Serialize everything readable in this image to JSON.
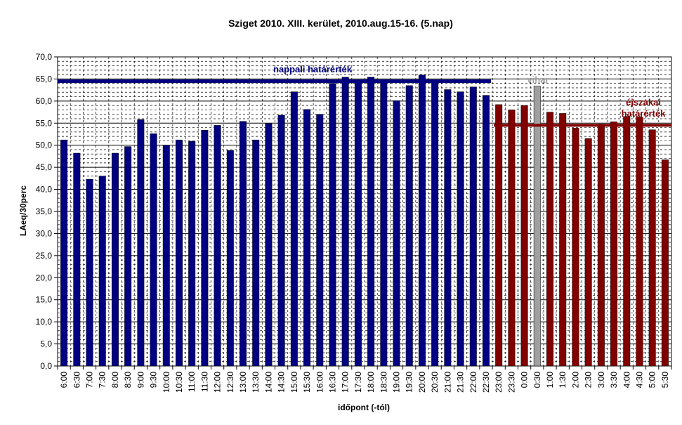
{
  "chart_data": {
    "type": "bar",
    "title": "Sziget 2010.  XIII. kerület, 2010.aug.15-16. (5.nap)",
    "xlabel": "időpont (-tól)",
    "ylabel": "LAeq/30perc",
    "ylim": [
      0,
      70
    ],
    "ytick_step": 5,
    "ytick_labels": [
      "0,0",
      "5,0",
      "10,0",
      "15,0",
      "20,0",
      "25,0",
      "30,0",
      "35,0",
      "40,0",
      "45,0",
      "50,0",
      "55,0",
      "60,0",
      "65,0",
      "70,0"
    ],
    "grid": true,
    "categories": [
      "6:00",
      "6:30",
      "7:00",
      "7:30",
      "8:00",
      "8:30",
      "9:00",
      "9:30",
      "10:00",
      "10:30",
      "11:00",
      "11:30",
      "12:00",
      "12:30",
      "13:00",
      "13:30",
      "14:00",
      "14:30",
      "15:00",
      "15:30",
      "16:00",
      "16:30",
      "17:00",
      "17:30",
      "18:00",
      "18:30",
      "19:00",
      "19:30",
      "20:00",
      "20:30",
      "21:00",
      "21:30",
      "22:00",
      "22:30",
      "23:00",
      "23:30",
      "0:00",
      "0:30",
      "1:00",
      "1:30",
      "2:00",
      "2:30",
      "3:00",
      "3:30",
      "4:00",
      "4:30",
      "5:00",
      "5:30"
    ],
    "values": [
      51.2,
      48.2,
      42.3,
      43.0,
      48.2,
      49.7,
      55.8,
      52.6,
      50.0,
      51.2,
      50.9,
      53.4,
      54.5,
      48.8,
      55.4,
      51.2,
      54.9,
      56.8,
      62.1,
      58.1,
      57.0,
      64.0,
      65.4,
      64.2,
      65.4,
      64.8,
      60.1,
      63.5,
      65.9,
      64.6,
      62.6,
      62.1,
      63.2,
      61.3,
      59.2,
      58.0,
      59.0,
      63.4,
      57.5,
      57.2,
      53.9,
      51.5,
      54.8,
      55.3,
      56.5,
      56.4,
      53.5,
      46.7
    ],
    "bar_colors": {
      "day": "#000080",
      "night": "#800000",
      "storm": "#a0a0a0"
    },
    "night_start_index": 34,
    "storm_index": 37,
    "reference_lines": [
      {
        "label": "nappali határérték",
        "value": 64.5,
        "color": "#000080"
      },
      {
        "label_lines": [
          "éjszakai",
          "határérték"
        ],
        "value": 54.5,
        "color": "#800000"
      }
    ],
    "annotations": [
      {
        "text": "vihar",
        "color": "#a0a0a0"
      }
    ]
  }
}
